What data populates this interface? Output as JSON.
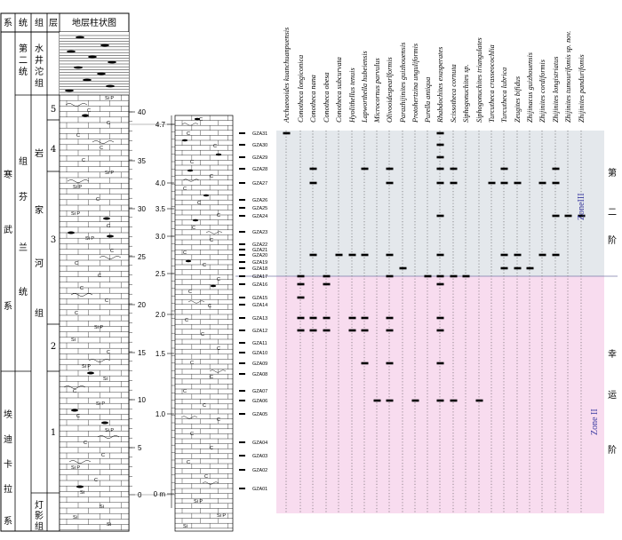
{
  "columns": {
    "system": "系",
    "series": "统",
    "formation": "组",
    "bed": "层",
    "lithology": "地层柱状图"
  },
  "system_name_upper": [
    "寒",
    "武",
    "系"
  ],
  "system_name_lower": [
    "埃",
    "迪",
    "卡",
    "拉",
    "系"
  ],
  "series_name_upper": [
    "第",
    "二",
    "统"
  ],
  "series_name_middle": [
    "组",
    "芬",
    "兰",
    "统"
  ],
  "formations": {
    "shuijingtuo": [
      "水",
      "井",
      "沱",
      "组"
    ],
    "yanjiahe": [
      "岩",
      "家",
      "河",
      "组"
    ],
    "dengying": [
      "灯",
      "影",
      "组"
    ]
  },
  "beds": [
    "5",
    "4",
    "3",
    "2",
    "1"
  ],
  "left_scale": [
    "40",
    "35",
    "30",
    "25",
    "20",
    "15",
    "10",
    "5",
    "0"
  ],
  "mid_scale": [
    "4.7",
    "4.0",
    "3.5",
    "3.0",
    "2.5",
    "2.0",
    "1.5",
    "1.0",
    "0 m"
  ],
  "lith_symbols": {
    "si": "Si",
    "sip": "Si P",
    "c": "C"
  },
  "samples": [
    "GZA31",
    "GZA30",
    "GZA29",
    "GZA28",
    "GZA27",
    "GZA26",
    "GZA25",
    "GZA24",
    "GZA23",
    "GZA22",
    "GZA21",
    "GZA20",
    "GZA19",
    "GZA18",
    "GZA17",
    "GZA16",
    "GZA15",
    "GZA14",
    "GZA13",
    "GZA12",
    "GZA11",
    "GZA10",
    "GZA09",
    "GZA08",
    "GZA07",
    "GZA06",
    "GZA05",
    "GZA04",
    "GZA03",
    "GZA02",
    "GZA01"
  ],
  "species": [
    "Archaeooides kuanchuanpuensis",
    "Conotheca longiconica",
    "Conotheca nana",
    "Conotheca obesa",
    "Conotheca subcurvata",
    "Hyolithellus tenuis",
    "Lapworthella hubeiensis",
    "Microcornus parvulus",
    "Olivooidespearlformis",
    "Parazhijinites guizhouensis",
    "Protohertzina unguliformis",
    "Purella antiqua",
    "Rhabdochites exasperates",
    "Scissotheca cornuta",
    "Siphogonuchites sp.",
    "Siphogonuchites triangulates",
    "Turcutheca crasseocochlia",
    "Turcutheca lubrica",
    "Zeugites bifidus",
    "Zhijinacus guizhouensis",
    "Zhijinites cordiformis",
    "Zhijinites longistriatus",
    "Zhijinites tumourifomis sp. nov.",
    "Zhijinites pandurifomis"
  ],
  "zones": {
    "upper": {
      "label": "ZoneIII",
      "stage": [
        "第",
        "二",
        "阶"
      ],
      "color": "#e4e8ec"
    },
    "lower": {
      "label": "Zone II",
      "stage": [
        "幸",
        "运",
        "阶"
      ],
      "color": "#f8dcef"
    }
  },
  "occurrences": {
    "Archaeooides kuanchuanpuensis": [
      1
    ],
    "Conotheca longiconica": [
      15,
      16,
      17,
      19,
      20
    ],
    "Conotheca nana": [
      4,
      5,
      12,
      19,
      20
    ],
    "Conotheca obesa": [
      15,
      16,
      19,
      20
    ],
    "Conotheca subcurvata": [
      12
    ],
    "Hyolithellus tenuis": [
      12,
      19,
      20
    ],
    "Lapworthella hubeiensis": [
      4,
      12,
      19,
      20,
      23
    ],
    "Microcornus parvulus": [
      26
    ],
    "Olivooidespearlformis": [
      4,
      5,
      12,
      15,
      19,
      20,
      23,
      26
    ],
    "Parazhijinites guizhouensis": [
      14
    ],
    "Protohertzina unguliformis": [
      26
    ],
    "Purella antiqua": [
      15
    ],
    "Rhabdochites exasperates": [
      1,
      2,
      3,
      4,
      5,
      8,
      12,
      15,
      16,
      19,
      20,
      23,
      26
    ],
    "Scissotheca cornuta": [
      4,
      5,
      15,
      26
    ],
    "Siphogonuchites sp.": [
      15
    ],
    "Siphogonuchites triangulates": [
      26
    ],
    "Turcutheca crasseocochlia": [
      5
    ],
    "Turcutheca lubrica": [
      4,
      5,
      12,
      14
    ],
    "Zeugites bifidus": [
      5,
      12,
      14
    ],
    "Zhijinacus guizhouensis": [
      14
    ],
    "Zhijinites cordiformis": [
      5,
      12
    ],
    "Zhijinites longistriatus": [
      4,
      5,
      8,
      12
    ],
    "Zhijinites tumourifomis sp. nov.": [
      8
    ],
    "Zhijinites pandurifomis": [
      8
    ]
  }
}
